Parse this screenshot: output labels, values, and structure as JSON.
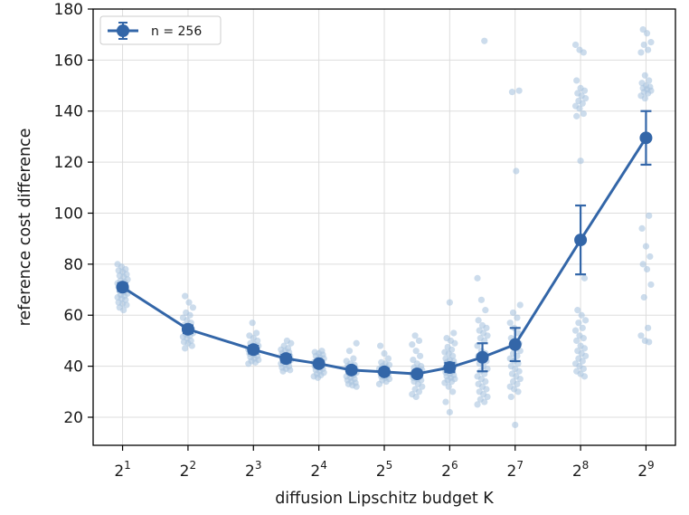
{
  "chart_data": {
    "type": "line",
    "title": "",
    "xlabel": "diffusion Lipschitz budget K",
    "ylabel": "reference cost difference",
    "x_scale": "log2",
    "xlim_exponent": [
      0.55,
      9.45
    ],
    "ylim": [
      9,
      180
    ],
    "grid": true,
    "legend": {
      "placement": "top-left",
      "label": "n = 256"
    },
    "colors": {
      "series": "#3366a8",
      "scatter": "#aac4e0",
      "axis": "#000000",
      "grid": "#dddddd"
    },
    "x_ticks": [
      {
        "base": "2",
        "exp": "1",
        "value": 2
      },
      {
        "base": "2",
        "exp": "2",
        "value": 4
      },
      {
        "base": "2",
        "exp": "3",
        "value": 8
      },
      {
        "base": "2",
        "exp": "4",
        "value": 16
      },
      {
        "base": "2",
        "exp": "5",
        "value": 32
      },
      {
        "base": "2",
        "exp": "6",
        "value": 64
      },
      {
        "base": "2",
        "exp": "7",
        "value": 128
      },
      {
        "base": "2",
        "exp": "8",
        "value": 256
      },
      {
        "base": "2",
        "exp": "9",
        "value": 512
      }
    ],
    "y_ticks": [
      "20",
      "40",
      "60",
      "80",
      "100",
      "120",
      "140",
      "160",
      "180"
    ],
    "series": [
      {
        "name": "n = 256",
        "x": [
          2,
          4,
          8,
          11.3,
          16,
          22.6,
          32,
          45.3,
          64,
          90.5,
          128,
          256,
          512
        ],
        "y": [
          71,
          54.5,
          46.5,
          43,
          41,
          38.5,
          37.8,
          37,
          39.5,
          43.5,
          48.5,
          89.5,
          129.5
        ],
        "yerr": [
          1.5,
          1.5,
          1.5,
          1.5,
          1.2,
          1.2,
          1.2,
          1.2,
          1.8,
          5.5,
          6.5,
          13.5,
          10.5
        ]
      }
    ],
    "scatter_points": [
      {
        "x": 2,
        "y": [
          80,
          79,
          78,
          77.5,
          77,
          76,
          75.5,
          75,
          74,
          73.5,
          73,
          72.5,
          72,
          71.5,
          71,
          70.5,
          70,
          69.5,
          69,
          68.5,
          68,
          67.5,
          67,
          66.5,
          66,
          65,
          64.5,
          64,
          63,
          62
        ]
      },
      {
        "x": 4,
        "y": [
          67.5,
          65,
          63,
          61,
          60,
          59,
          58,
          57,
          56,
          55,
          54.5,
          54,
          53.5,
          53,
          52.5,
          52,
          51.5,
          51,
          50,
          49.5,
          49,
          48,
          47
        ]
      },
      {
        "x": 8,
        "y": [
          57,
          53,
          52,
          51,
          50,
          49,
          48.5,
          48,
          47.5,
          47,
          46.5,
          46,
          45.5,
          45,
          44.5,
          44,
          43.5,
          43,
          42.5,
          42,
          41.5,
          41
        ]
      },
      {
        "x": 11.3,
        "y": [
          50,
          49,
          48,
          47,
          46.5,
          46,
          45.5,
          45,
          44.5,
          44,
          43.5,
          43,
          42.5,
          42,
          41.5,
          41,
          40.5,
          40,
          39.5,
          39,
          38.5,
          38
        ]
      },
      {
        "x": 16,
        "y": [
          46,
          45.5,
          45,
          44.5,
          44,
          43.5,
          43,
          42.5,
          42,
          41.5,
          41,
          40.5,
          40,
          39.5,
          39,
          38.5,
          38,
          37.5,
          37,
          36.5,
          36,
          35.5
        ]
      },
      {
        "x": 22.6,
        "y": [
          49,
          46,
          43,
          42,
          41,
          40.5,
          40,
          39.5,
          39,
          38.5,
          38,
          37.5,
          37,
          36.5,
          36,
          35.5,
          35,
          34.5,
          34,
          33.5,
          33,
          32.5,
          32
        ]
      },
      {
        "x": 32,
        "y": [
          48,
          45,
          43,
          41.5,
          41,
          40.5,
          40,
          39.5,
          39,
          38.5,
          38,
          37.5,
          37,
          36.5,
          36,
          35.5,
          35,
          34.5,
          34,
          33
        ]
      },
      {
        "x": 45.3,
        "y": [
          52,
          50,
          48.5,
          46,
          44,
          42.5,
          41,
          40,
          39.5,
          39,
          38.5,
          38,
          37.5,
          37,
          36.5,
          36,
          35.5,
          35,
          34.5,
          34,
          33,
          32,
          31,
          30,
          29,
          28
        ]
      },
      {
        "x": 64,
        "y": [
          65,
          53,
          51,
          50,
          49,
          47.5,
          46.5,
          45.5,
          45,
          44,
          43,
          42.5,
          42,
          41.5,
          41,
          40.5,
          40,
          39.5,
          39,
          38.5,
          38,
          37.5,
          37,
          36.5,
          36,
          35.5,
          35,
          34.5,
          34,
          33.5,
          32,
          30,
          26,
          22
        ]
      },
      {
        "x": 90.5,
        "y": [
          167.5,
          74.5,
          66,
          62,
          58,
          56,
          55,
          54,
          53,
          52,
          51,
          50,
          48,
          46,
          45,
          44,
          43,
          42,
          41,
          40,
          39,
          38,
          37,
          36,
          35,
          34,
          33,
          32,
          31,
          30,
          29,
          28,
          27,
          26,
          25
        ]
      },
      {
        "x": 128,
        "y": [
          148,
          147.5,
          116.5,
          64,
          61,
          59,
          57,
          55,
          53,
          51,
          50,
          49,
          48,
          47,
          46,
          45,
          44,
          43,
          42,
          41,
          40,
          39,
          38,
          37,
          36,
          35,
          34,
          33,
          32,
          31,
          30,
          28,
          17
        ]
      },
      {
        "x": 256,
        "y": [
          166,
          164,
          163,
          152,
          149,
          148,
          147,
          146,
          145,
          144,
          143,
          142,
          141,
          139,
          138,
          120.5,
          74.5,
          62,
          60,
          58,
          57,
          55,
          54,
          52,
          51,
          50,
          48,
          47,
          46,
          45,
          44,
          43,
          42,
          41,
          40,
          39,
          38,
          37,
          36
        ]
      },
      {
        "x": 512,
        "y": [
          172,
          170.5,
          167,
          166,
          164,
          163,
          154,
          152,
          151,
          150,
          149.5,
          149,
          148.5,
          148,
          147.5,
          147,
          146,
          145,
          99,
          94,
          87,
          83,
          80,
          78,
          72,
          67,
          55,
          52,
          50,
          49.5
        ]
      }
    ]
  }
}
